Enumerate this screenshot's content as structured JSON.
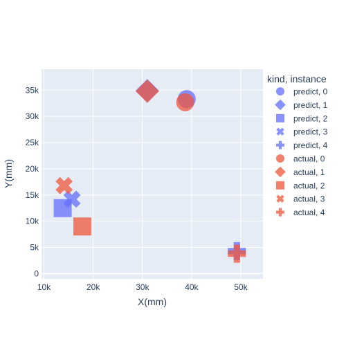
{
  "chart_data": {
    "type": "scatter",
    "xlabel": "X(mm)",
    "ylabel": "Y(mm)",
    "xlim": [
      9500,
      54500
    ],
    "ylim": [
      -1000,
      39000
    ],
    "x_ticks": [
      10000,
      20000,
      30000,
      40000,
      50000
    ],
    "x_tick_labels": [
      "10k",
      "20k",
      "30k",
      "40k",
      "50k"
    ],
    "y_ticks": [
      0,
      5000,
      10000,
      15000,
      20000,
      25000,
      30000,
      35000
    ],
    "y_tick_labels": [
      "0",
      "5k",
      "10k",
      "15k",
      "20k",
      "25k",
      "30k",
      "35k"
    ],
    "grid": true,
    "legend": {
      "title": "kind, instance",
      "placement": "right"
    },
    "colors": {
      "predict": "#636efa",
      "actual": "#EF553B",
      "plot_background": "#E5ECF6",
      "grid": "#ffffff",
      "text": "#2a3f5f"
    },
    "series": [
      {
        "name": "predict, 0",
        "kind": "predict",
        "symbol": "circle",
        "points": [
          {
            "x": 39000,
            "y": 33300
          }
        ]
      },
      {
        "name": "predict, 1",
        "kind": "predict",
        "symbol": "diamond",
        "points": [
          {
            "x": 31000,
            "y": 34900
          }
        ]
      },
      {
        "name": "predict, 2",
        "kind": "predict",
        "symbol": "square",
        "points": [
          {
            "x": 13800,
            "y": 12500
          }
        ]
      },
      {
        "name": "predict, 3",
        "kind": "predict",
        "symbol": "x",
        "points": [
          {
            "x": 15700,
            "y": 14200
          }
        ]
      },
      {
        "name": "predict, 4",
        "kind": "predict",
        "symbol": "cross",
        "points": [
          {
            "x": 49200,
            "y": 4300
          }
        ]
      },
      {
        "name": "actual, 0",
        "kind": "actual",
        "symbol": "circle",
        "points": [
          {
            "x": 38700,
            "y": 32700
          }
        ]
      },
      {
        "name": "actual, 1",
        "kind": "actual",
        "symbol": "diamond",
        "points": [
          {
            "x": 31000,
            "y": 34800
          }
        ]
      },
      {
        "name": "actual, 2",
        "kind": "actual",
        "symbol": "square",
        "points": [
          {
            "x": 17800,
            "y": 9000
          }
        ]
      },
      {
        "name": "actual, 3",
        "kind": "actual",
        "symbol": "x",
        "points": [
          {
            "x": 14100,
            "y": 16800
          }
        ]
      },
      {
        "name": "actual, 4",
        "kind": "actual",
        "symbol": "cross",
        "points": [
          {
            "x": 49200,
            "y": 3800
          }
        ]
      }
    ]
  }
}
